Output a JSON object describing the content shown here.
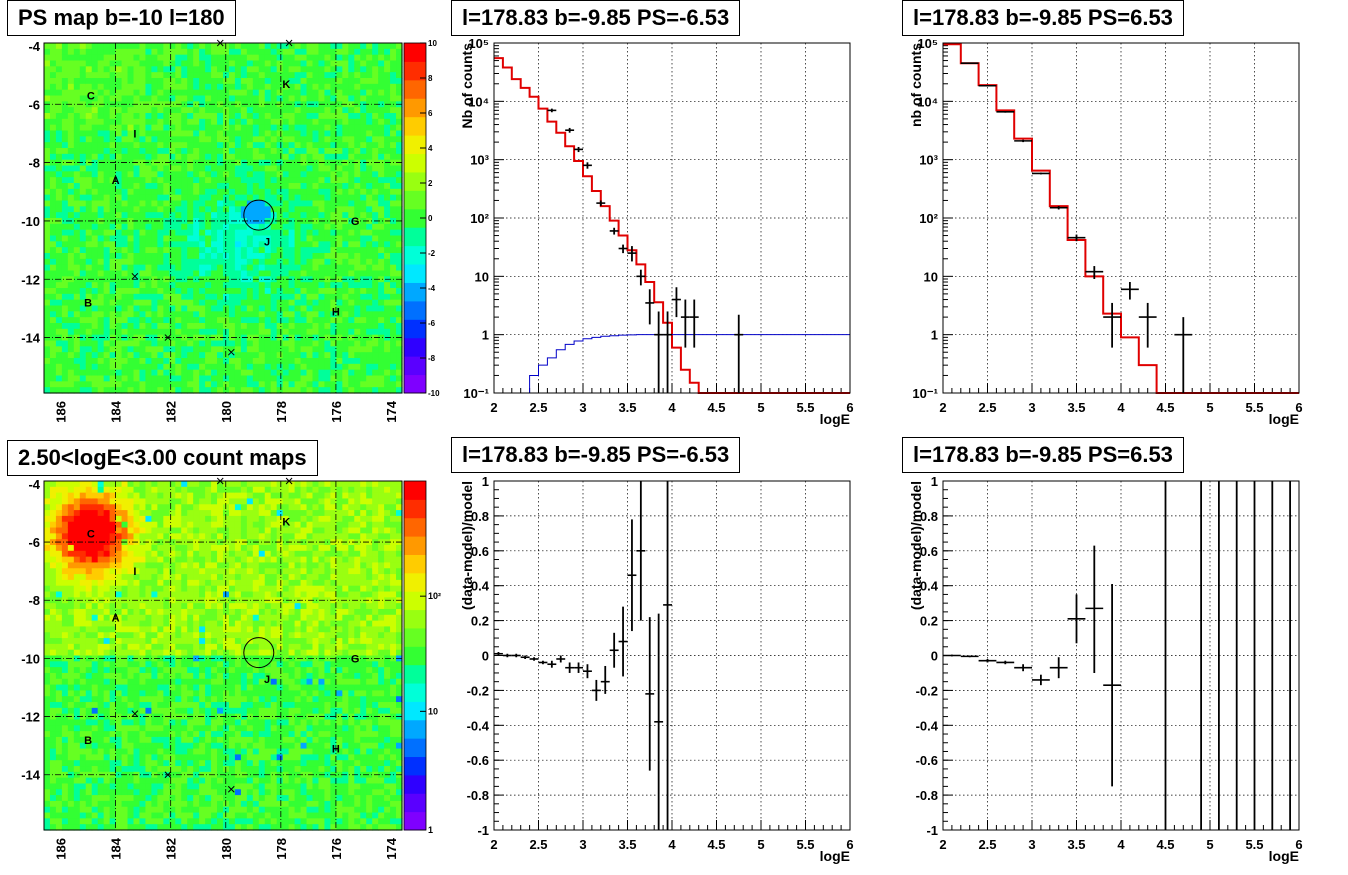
{
  "panels": {
    "ps_map": {
      "title": "PS map b=-10 l=180",
      "colorbar_ticks": [
        "10",
        "8",
        "6",
        "4",
        "2",
        "0",
        "-2",
        "-4",
        "-6",
        "-8",
        "-10"
      ]
    },
    "count_map": {
      "title": "2.50<logE<3.00 count maps",
      "colorbar_ticks": [
        "10²",
        "10",
        "1"
      ]
    },
    "spec_a": {
      "title": "l=178.83 b=-9.85 PS=-6.53"
    },
    "spec_b": {
      "title": "l=178.83 b=-9.85 PS=6.53"
    },
    "resid_a": {
      "title": "l=178.83 b=-9.85 PS=-6.53"
    },
    "resid_b": {
      "title": "l=178.83 b=-9.85 PS=6.53"
    }
  },
  "map_axes": {
    "x_ticks": [
      "186",
      "184",
      "182",
      "180",
      "178",
      "176",
      "174"
    ],
    "y_ticks": [
      "-4",
      "-6",
      "-8",
      "-10",
      "-12",
      "-14"
    ],
    "xlim": [
      186.6,
      173.6
    ],
    "ylim": [
      -15.9,
      -3.9
    ]
  },
  "map_sources": [
    {
      "label": "C",
      "l": 184.9,
      "b": -5.7
    },
    {
      "label": "I",
      "l": 183.3,
      "b": -7.0
    },
    {
      "label": "A",
      "l": 184.0,
      "b": -8.6
    },
    {
      "label": "K",
      "l": 177.8,
      "b": -5.3
    },
    {
      "label": "G",
      "l": 175.3,
      "b": -10.0
    },
    {
      "label": "J",
      "l": 178.5,
      "b": -10.7
    },
    {
      "label": "B",
      "l": 185.0,
      "b": -12.8
    },
    {
      "label": "H",
      "l": 176.0,
      "b": -13.1
    }
  ],
  "map_crosses": [
    {
      "l": 180.2,
      "b": -3.9
    },
    {
      "l": 177.7,
      "b": -3.9
    },
    {
      "l": 183.3,
      "b": -11.9
    },
    {
      "l": 182.1,
      "b": -14.0
    },
    {
      "l": 179.8,
      "b": -14.5
    }
  ],
  "map_circle": {
    "l": 178.8,
    "b": -9.8
  },
  "chart_data": [
    {
      "type": "line",
      "panel": "spec_a",
      "ylabel": "Nb of counts",
      "xlabel": "logE",
      "log_y": true,
      "xlim": [
        2,
        6
      ],
      "ylim": [
        0.1,
        100000
      ],
      "x_ticks": [
        "2",
        "2.5",
        "3",
        "3.5",
        "4",
        "4.5",
        "5",
        "5.5",
        "6"
      ],
      "y_ticks": [
        "10⁻¹",
        "1",
        "10",
        "10²",
        "10³",
        "10⁴",
        "10⁵"
      ],
      "bin_edges": [
        2.0,
        2.1,
        2.2,
        2.3,
        2.4,
        2.5,
        2.6,
        2.7,
        2.8,
        2.9,
        3.0,
        3.1,
        3.2,
        3.3,
        3.4,
        3.5,
        3.6,
        3.7,
        3.8,
        3.9,
        4.0,
        4.1,
        4.2,
        4.3,
        4.4,
        4.5,
        4.6,
        4.7,
        4.8,
        4.9,
        5.0,
        5.1,
        5.2,
        5.3,
        5.4,
        5.5,
        5.6,
        5.7,
        5.8,
        5.9,
        6.0
      ],
      "series": [
        {
          "values": [
            55000,
            38000,
            24000,
            17000,
            12000,
            7500,
            4500,
            2900,
            1700,
            950,
            520,
            290,
            160,
            90,
            50,
            28,
            16,
            8,
            3.6,
            1.6,
            0.6,
            0.25,
            0.15,
            0.1,
            0.1,
            0.1,
            0.1,
            0.1,
            0.1,
            0.1,
            0.1,
            0.1,
            0.1,
            0.1,
            0.1,
            0.1,
            0.1,
            0.1,
            0.1,
            0.1
          ],
          "color": "#e00000"
        },
        {
          "values": [
            0.1,
            0.1,
            0.1,
            0.1,
            0.2,
            0.3,
            0.4,
            0.55,
            0.68,
            0.78,
            0.85,
            0.9,
            0.94,
            0.96,
            0.98,
            0.99,
            1.0,
            1.0,
            1.0,
            1.0,
            1.0,
            1.0,
            1.0,
            1.0,
            1.0,
            1.0,
            1.0,
            1.0,
            1.0,
            1.0,
            1.0,
            1.0,
            1.0,
            1.0,
            1.0,
            1.0,
            1.0,
            1.0,
            1.0,
            1.0
          ],
          "color": "#0000c8"
        }
      ],
      "points": [
        {
          "x": 2.65,
          "y": 7000,
          "xerr": 0.05,
          "ylo": 6500,
          "yhi": 7500
        },
        {
          "x": 2.85,
          "y": 3200,
          "xerr": 0.05,
          "ylo": 2900,
          "yhi": 3500
        },
        {
          "x": 2.95,
          "y": 1500,
          "xerr": 0.05,
          "ylo": 1350,
          "yhi": 1650
        },
        {
          "x": 3.05,
          "y": 800,
          "xerr": 0.05,
          "ylo": 700,
          "yhi": 900
        },
        {
          "x": 3.2,
          "y": 180,
          "xerr": 0.05,
          "ylo": 160,
          "yhi": 200
        },
        {
          "x": 3.35,
          "y": 60,
          "xerr": 0.05,
          "ylo": 52,
          "yhi": 68
        },
        {
          "x": 3.45,
          "y": 30,
          "xerr": 0.05,
          "ylo": 25,
          "yhi": 35
        },
        {
          "x": 3.55,
          "y": 25,
          "xerr": 0.05,
          "ylo": 18,
          "yhi": 33
        },
        {
          "x": 3.65,
          "y": 10,
          "xerr": 0.05,
          "ylo": 7,
          "yhi": 13
        },
        {
          "x": 3.75,
          "y": 3.5,
          "xerr": 0.05,
          "ylo": 1.5,
          "yhi": 6
        },
        {
          "x": 3.85,
          "y": 1,
          "xerr": 0.05,
          "ylo": 0.1,
          "yhi": 2.5
        },
        {
          "x": 3.95,
          "y": 1,
          "xerr": 0.05,
          "ylo": 0.1,
          "yhi": 2.5
        },
        {
          "x": 4.05,
          "y": 4,
          "xerr": 0.05,
          "ylo": 2,
          "yhi": 6.5
        },
        {
          "x": 4.15,
          "y": 2,
          "xerr": 0.05,
          "ylo": 0.6,
          "yhi": 4
        },
        {
          "x": 4.25,
          "y": 2,
          "xerr": 0.05,
          "ylo": 0.6,
          "yhi": 4
        },
        {
          "x": 4.75,
          "y": 1,
          "xerr": 0.05,
          "ylo": 0.1,
          "yhi": 2.2
        }
      ]
    },
    {
      "type": "line",
      "panel": "spec_b",
      "ylabel": "nb of counts",
      "xlabel": "logE",
      "log_y": true,
      "xlim": [
        2,
        6
      ],
      "ylim": [
        0.1,
        100000
      ],
      "x_ticks": [
        "2",
        "2.5",
        "3",
        "3.5",
        "4",
        "4.5",
        "5",
        "5.5",
        "6"
      ],
      "y_ticks": [
        "10⁻¹",
        "1",
        "10",
        "10²",
        "10³",
        "10⁴",
        "10⁵"
      ],
      "bin_edges": [
        2.0,
        2.2,
        2.4,
        2.6,
        2.8,
        3.0,
        3.2,
        3.4,
        3.6,
        3.8,
        4.0,
        4.2,
        4.4,
        4.6,
        4.8,
        5.0,
        5.2,
        5.4,
        5.6,
        5.8,
        6.0
      ],
      "series": [
        {
          "values": [
            95000,
            45000,
            19000,
            7000,
            2300,
            650,
            160,
            42,
            10,
            2.3,
            0.9,
            0.3,
            0.1,
            0.1,
            0.1,
            0.1,
            0.1,
            0.1,
            0.1,
            0.1
          ],
          "color": "#e00000"
        }
      ],
      "points": [
        {
          "x": 2.3,
          "y": 45000,
          "xerr": 0.1,
          "ylo": 44000,
          "yhi": 46000
        },
        {
          "x": 2.5,
          "y": 18500,
          "xerr": 0.1,
          "ylo": 18000,
          "yhi": 19000
        },
        {
          "x": 2.7,
          "y": 6600,
          "xerr": 0.1,
          "ylo": 6400,
          "yhi": 6800
        },
        {
          "x": 2.9,
          "y": 2100,
          "xerr": 0.1,
          "ylo": 2000,
          "yhi": 2200
        },
        {
          "x": 3.1,
          "y": 580,
          "xerr": 0.1,
          "ylo": 560,
          "yhi": 600
        },
        {
          "x": 3.3,
          "y": 150,
          "xerr": 0.1,
          "ylo": 140,
          "yhi": 160
        },
        {
          "x": 3.5,
          "y": 46,
          "xerr": 0.1,
          "ylo": 40,
          "yhi": 52
        },
        {
          "x": 3.7,
          "y": 12,
          "xerr": 0.1,
          "ylo": 9,
          "yhi": 15
        },
        {
          "x": 3.9,
          "y": 2,
          "xerr": 0.1,
          "ylo": 0.6,
          "yhi": 3.5
        },
        {
          "x": 4.1,
          "y": 6,
          "xerr": 0.1,
          "ylo": 4,
          "yhi": 8
        },
        {
          "x": 4.3,
          "y": 2,
          "xerr": 0.1,
          "ylo": 0.6,
          "yhi": 3.5
        },
        {
          "x": 4.7,
          "y": 1,
          "xerr": 0.1,
          "ylo": 0.1,
          "yhi": 2
        }
      ]
    },
    {
      "type": "scatter",
      "panel": "resid_a",
      "ylabel": "(data-model)/model",
      "xlabel": "logE",
      "xlim": [
        2,
        6
      ],
      "ylim": [
        -1,
        1
      ],
      "x_ticks": [
        "2",
        "2.5",
        "3",
        "3.5",
        "4",
        "4.5",
        "5",
        "5.5",
        "6"
      ],
      "y_ticks": [
        "1",
        "0.8",
        "0.6",
        "0.4",
        "0.2",
        "0",
        "-0.2",
        "-0.4",
        "-0.6",
        "-0.8",
        "-1"
      ],
      "points": [
        {
          "x": 2.05,
          "y": 0.01,
          "xerr": 0.05,
          "ylo": 0.0,
          "yhi": 0.02
        },
        {
          "x": 2.15,
          "y": 0.0,
          "xerr": 0.05,
          "ylo": -0.01,
          "yhi": 0.01
        },
        {
          "x": 2.25,
          "y": 0.0,
          "xerr": 0.05,
          "ylo": -0.01,
          "yhi": 0.01
        },
        {
          "x": 2.35,
          "y": -0.01,
          "xerr": 0.05,
          "ylo": -0.02,
          "yhi": 0.0
        },
        {
          "x": 2.45,
          "y": -0.02,
          "xerr": 0.05,
          "ylo": -0.03,
          "yhi": -0.01
        },
        {
          "x": 2.55,
          "y": -0.04,
          "xerr": 0.05,
          "ylo": -0.05,
          "yhi": -0.03
        },
        {
          "x": 2.65,
          "y": -0.05,
          "xerr": 0.05,
          "ylo": -0.07,
          "yhi": -0.03
        },
        {
          "x": 2.75,
          "y": -0.02,
          "xerr": 0.05,
          "ylo": -0.04,
          "yhi": 0.0
        },
        {
          "x": 2.85,
          "y": -0.07,
          "xerr": 0.05,
          "ylo": -0.1,
          "yhi": -0.04
        },
        {
          "x": 2.95,
          "y": -0.07,
          "xerr": 0.05,
          "ylo": -0.1,
          "yhi": -0.04
        },
        {
          "x": 3.05,
          "y": -0.09,
          "xerr": 0.05,
          "ylo": -0.13,
          "yhi": -0.05
        },
        {
          "x": 3.15,
          "y": -0.2,
          "xerr": 0.05,
          "ylo": -0.26,
          "yhi": -0.14
        },
        {
          "x": 3.25,
          "y": -0.15,
          "xerr": 0.05,
          "ylo": -0.22,
          "yhi": -0.06
        },
        {
          "x": 3.35,
          "y": 0.03,
          "xerr": 0.05,
          "ylo": -0.07,
          "yhi": 0.13
        },
        {
          "x": 3.45,
          "y": 0.08,
          "xerr": 0.05,
          "ylo": -0.12,
          "yhi": 0.28
        },
        {
          "x": 3.55,
          "y": 0.46,
          "xerr": 0.05,
          "ylo": 0.14,
          "yhi": 0.78
        },
        {
          "x": 3.65,
          "y": 0.6,
          "xerr": 0.05,
          "ylo": 0.2,
          "yhi": 1.0
        },
        {
          "x": 3.75,
          "y": -0.22,
          "xerr": 0.05,
          "ylo": -0.66,
          "yhi": 0.22
        },
        {
          "x": 3.85,
          "y": -0.38,
          "xerr": 0.05,
          "ylo": -1.0,
          "yhi": 0.24
        },
        {
          "x": 3.95,
          "y": 0.29,
          "xerr": 0.05,
          "ylo": -1.0,
          "yhi": 1.0
        }
      ]
    },
    {
      "type": "scatter",
      "panel": "resid_b",
      "ylabel": "(data-model)/model",
      "xlabel": "logE",
      "xlim": [
        2,
        6
      ],
      "ylim": [
        -1,
        1
      ],
      "x_ticks": [
        "2",
        "2.5",
        "3",
        "3.5",
        "4",
        "4.5",
        "5",
        "5.5",
        "6"
      ],
      "y_ticks": [
        "1",
        "0.8",
        "0.6",
        "0.4",
        "0.2",
        "0",
        "-0.2",
        "-0.4",
        "-0.6",
        "-0.8",
        "-1"
      ],
      "points": [
        {
          "x": 2.1,
          "y": 0.0,
          "xerr": 0.1,
          "ylo": -0.005,
          "yhi": 0.005
        },
        {
          "x": 2.3,
          "y": -0.005,
          "xerr": 0.1,
          "ylo": -0.01,
          "yhi": 0.0
        },
        {
          "x": 2.5,
          "y": -0.03,
          "xerr": 0.1,
          "ylo": -0.04,
          "yhi": -0.02
        },
        {
          "x": 2.7,
          "y": -0.04,
          "xerr": 0.1,
          "ylo": -0.05,
          "yhi": -0.03
        },
        {
          "x": 2.9,
          "y": -0.07,
          "xerr": 0.1,
          "ylo": -0.09,
          "yhi": -0.05
        },
        {
          "x": 3.1,
          "y": -0.14,
          "xerr": 0.1,
          "ylo": -0.17,
          "yhi": -0.11
        },
        {
          "x": 3.3,
          "y": -0.07,
          "xerr": 0.1,
          "ylo": -0.13,
          "yhi": -0.01
        },
        {
          "x": 3.5,
          "y": 0.21,
          "xerr": 0.1,
          "ylo": 0.07,
          "yhi": 0.35
        },
        {
          "x": 3.7,
          "y": 0.27,
          "xerr": 0.1,
          "ylo": -0.1,
          "yhi": 0.63
        },
        {
          "x": 3.9,
          "y": -0.17,
          "xerr": 0.1,
          "ylo": -0.75,
          "yhi": 0.41
        },
        {
          "x": 4.5,
          "y": 1.0,
          "xerr": 0,
          "ylo": -1.0,
          "yhi": 1.0
        },
        {
          "x": 4.9,
          "y": 1.0,
          "xerr": 0,
          "ylo": -1.0,
          "yhi": 1.0
        },
        {
          "x": 5.1,
          "y": 1.0,
          "xerr": 0,
          "ylo": -1.0,
          "yhi": 1.0
        },
        {
          "x": 5.3,
          "y": 1.0,
          "xerr": 0,
          "ylo": -1.0,
          "yhi": 1.0
        },
        {
          "x": 5.5,
          "y": 1.0,
          "xerr": 0,
          "ylo": -1.0,
          "yhi": 1.0
        },
        {
          "x": 5.7,
          "y": 1.0,
          "xerr": 0,
          "ylo": -1.0,
          "yhi": 1.0
        },
        {
          "x": 5.9,
          "y": 1.0,
          "xerr": 0,
          "ylo": -1.0,
          "yhi": 1.0
        }
      ]
    }
  ]
}
